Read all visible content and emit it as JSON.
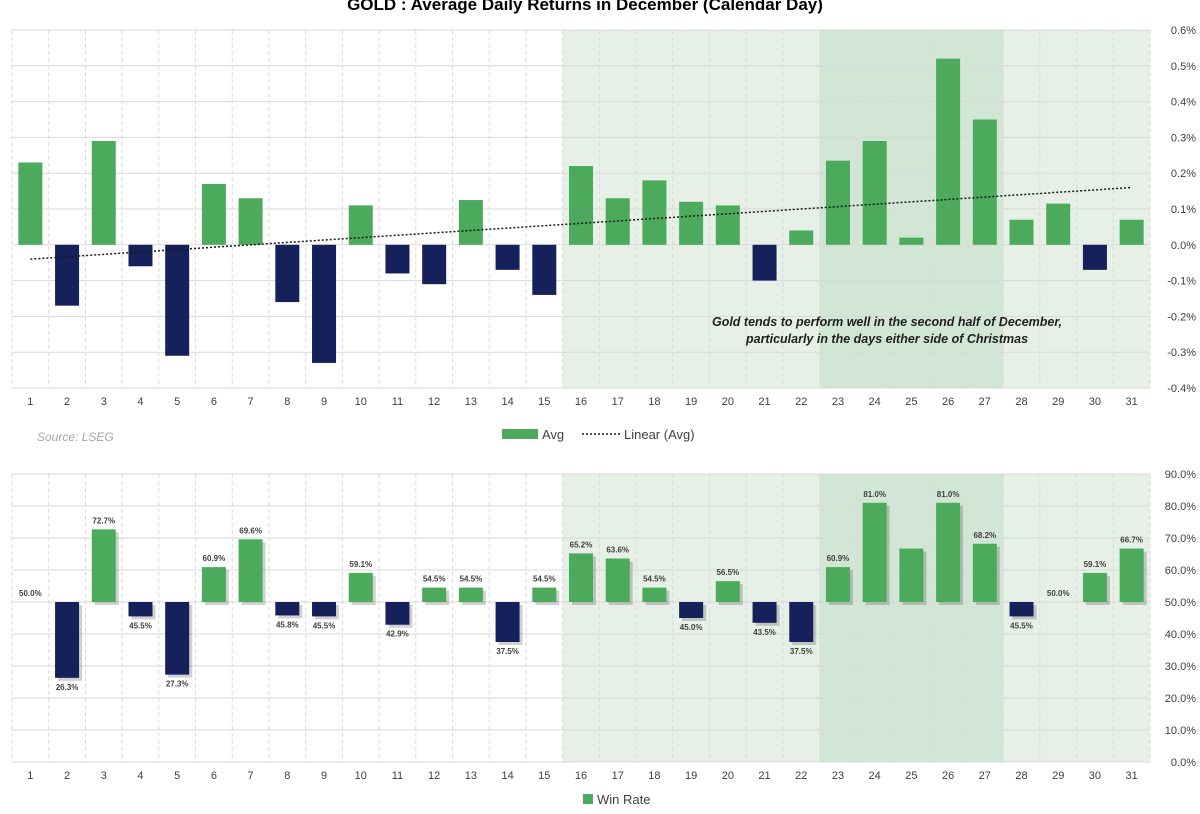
{
  "colors": {
    "positive": "#4caa5c",
    "negative": "#16205a",
    "highlight_light": "#e6f0e7",
    "highlight_dark": "#d2e6d5",
    "grid": "#d9d9d9",
    "trendline": "#1a1a1a"
  },
  "source": "Source: LSEG",
  "chart_data": [
    {
      "type": "bar",
      "title": "GOLD : Average Daily Returns in December (Calendar Day)",
      "categories": [
        "1",
        "2",
        "3",
        "4",
        "5",
        "6",
        "7",
        "8",
        "9",
        "10",
        "11",
        "12",
        "13",
        "14",
        "15",
        "16",
        "17",
        "18",
        "19",
        "20",
        "21",
        "22",
        "23",
        "24",
        "25",
        "26",
        "27",
        "28",
        "29",
        "30",
        "31"
      ],
      "series": [
        {
          "name": "Avg",
          "values": [
            0.23,
            -0.17,
            0.29,
            -0.06,
            -0.31,
            0.17,
            0.13,
            -0.16,
            -0.33,
            0.11,
            -0.08,
            -0.11,
            0.125,
            -0.07,
            -0.14,
            0.22,
            0.13,
            0.18,
            0.12,
            0.11,
            -0.1,
            0.04,
            0.235,
            0.29,
            0.02,
            0.52,
            0.35,
            0.07,
            0.115,
            -0.07,
            0.07
          ]
        },
        {
          "name": "Linear (Avg)",
          "type": "trendline",
          "start": -0.04,
          "end": 0.16
        }
      ],
      "ylim": [
        -0.4,
        0.6
      ],
      "yticks": [
        "-0.4%",
        "-0.3%",
        "-0.2%",
        "-0.1%",
        "0.0%",
        "0.1%",
        "0.2%",
        "0.3%",
        "0.4%",
        "0.5%",
        "0.6%"
      ],
      "annotation": [
        "Gold tends to perform well in the second half of December,",
        "particularly in the days either side of Christmas"
      ],
      "highlight": {
        "light": [
          16,
          31
        ],
        "dark": [
          23,
          27
        ]
      },
      "grid": true,
      "legend": "bottom"
    },
    {
      "type": "bar",
      "categories": [
        "1",
        "2",
        "3",
        "4",
        "5",
        "6",
        "7",
        "8",
        "9",
        "10",
        "11",
        "12",
        "13",
        "14",
        "15",
        "16",
        "17",
        "18",
        "19",
        "20",
        "21",
        "22",
        "23",
        "24",
        "25",
        "26",
        "27",
        "28",
        "29",
        "30",
        "31"
      ],
      "baseline": 50,
      "series": [
        {
          "name": "Win Rate",
          "values": [
            50.0,
            26.3,
            72.7,
            45.5,
            27.3,
            60.9,
            69.6,
            45.8,
            45.5,
            59.1,
            42.9,
            54.5,
            54.5,
            37.5,
            54.5,
            65.2,
            63.6,
            54.5,
            45.0,
            56.5,
            43.5,
            37.5,
            60.9,
            81.0,
            66.7,
            81.0,
            68.2,
            45.5,
            50.0,
            59.1,
            66.7
          ],
          "labels": [
            "50.0%",
            "26.3%",
            "72.7%",
            "45.5%",
            "27.3%",
            "60.9%",
            "69.6%",
            "45.8%",
            "45.5%",
            "59.1%",
            "42.9%",
            "54.5%",
            "54.5%",
            "37.5%",
            "54.5%",
            "65.2%",
            "63.6%",
            "54.5%",
            "45.0%",
            "56.5%",
            "43.5%",
            "37.5%",
            "60.9%",
            "81.0%",
            "",
            "81.0%",
            "68.2%",
            "45.5%",
            "50.0%",
            "59.1%",
            "66.7%"
          ]
        }
      ],
      "ylim": [
        0,
        90
      ],
      "yticks": [
        "0.0%",
        "10.0%",
        "20.0%",
        "30.0%",
        "40.0%",
        "50.0%",
        "60.0%",
        "70.0%",
        "80.0%",
        "90.0%"
      ],
      "highlight": {
        "light": [
          16,
          31
        ],
        "dark": [
          23,
          27
        ]
      },
      "grid": true,
      "legend": "bottom"
    }
  ]
}
